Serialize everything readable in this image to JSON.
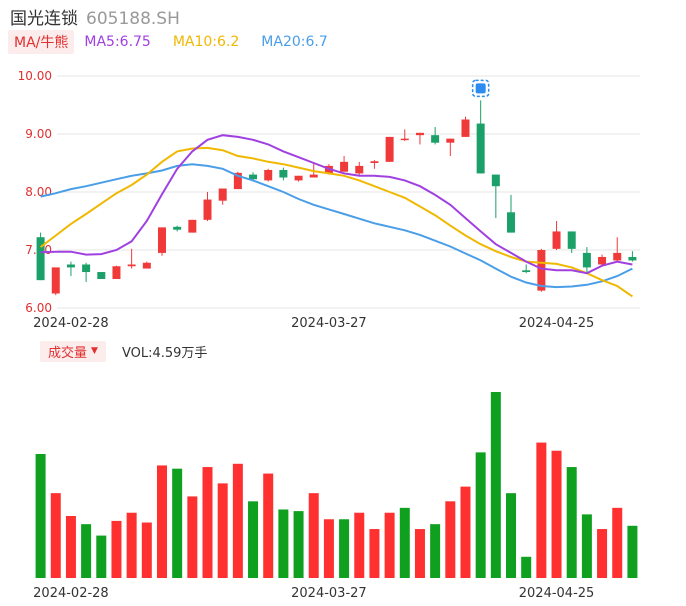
{
  "header": {
    "name": "国光连锁",
    "code": "605188.SH"
  },
  "ma_legend": {
    "tag": "MA/牛熊",
    "items": [
      {
        "label": "MA5:6.75",
        "color": "#a040e0"
      },
      {
        "label": "MA10:6.2",
        "color": "#f0b800"
      },
      {
        "label": "MA20:6.7",
        "color": "#4a9ee8"
      }
    ]
  },
  "volume_legend": {
    "tag": "成交量",
    "caret": "▼",
    "value": "VOL:4.59万手"
  },
  "colors": {
    "up": "#f03a3a",
    "down": "#1aa068",
    "vol_up": "#ff3030",
    "vol_down": "#10a020",
    "grid": "#e6e6e6"
  },
  "chart_data": [
    {
      "type": "candlestick",
      "y_ticks": [
        "10.00",
        "9.00",
        "8.00",
        "7.00",
        "6.00"
      ],
      "ylim": [
        6.0,
        10.0
      ],
      "x_labels": [
        "2024-02-28",
        "2024-03-27",
        "2024-04-25"
      ],
      "candles": [
        {
          "o": 7.22,
          "h": 7.3,
          "l": 6.48,
          "c": 6.48
        },
        {
          "o": 6.25,
          "h": 6.7,
          "l": 6.22,
          "c": 6.7
        },
        {
          "o": 6.75,
          "h": 6.8,
          "l": 6.55,
          "c": 6.7
        },
        {
          "o": 6.75,
          "h": 6.78,
          "l": 6.45,
          "c": 6.62
        },
        {
          "o": 6.62,
          "h": 6.62,
          "l": 6.5,
          "c": 6.5
        },
        {
          "o": 6.5,
          "h": 6.73,
          "l": 6.5,
          "c": 6.72
        },
        {
          "o": 6.72,
          "h": 7.02,
          "l": 6.68,
          "c": 6.75
        },
        {
          "o": 6.68,
          "h": 6.8,
          "l": 6.68,
          "c": 6.78
        },
        {
          "o": 6.95,
          "h": 7.39,
          "l": 6.9,
          "c": 7.39
        },
        {
          "o": 7.4,
          "h": 7.42,
          "l": 7.32,
          "c": 7.35
        },
        {
          "o": 7.3,
          "h": 7.52,
          "l": 7.3,
          "c": 7.52
        },
        {
          "o": 7.52,
          "h": 8.0,
          "l": 7.5,
          "c": 7.87
        },
        {
          "o": 7.85,
          "h": 8.06,
          "l": 7.78,
          "c": 8.06
        },
        {
          "o": 8.05,
          "h": 8.35,
          "l": 8.05,
          "c": 8.33
        },
        {
          "o": 8.3,
          "h": 8.34,
          "l": 8.18,
          "c": 8.22
        },
        {
          "o": 8.2,
          "h": 8.4,
          "l": 8.18,
          "c": 8.38
        },
        {
          "o": 8.38,
          "h": 8.42,
          "l": 8.2,
          "c": 8.25
        },
        {
          "o": 8.2,
          "h": 8.28,
          "l": 8.18,
          "c": 8.28
        },
        {
          "o": 8.25,
          "h": 8.5,
          "l": 8.25,
          "c": 8.3
        },
        {
          "o": 8.32,
          "h": 8.48,
          "l": 8.3,
          "c": 8.45
        },
        {
          "o": 8.35,
          "h": 8.62,
          "l": 8.35,
          "c": 8.52
        },
        {
          "o": 8.32,
          "h": 8.52,
          "l": 8.28,
          "c": 8.45
        },
        {
          "o": 8.5,
          "h": 8.55,
          "l": 8.4,
          "c": 8.53
        },
        {
          "o": 8.52,
          "h": 8.95,
          "l": 8.52,
          "c": 8.95
        },
        {
          "o": 8.9,
          "h": 9.08,
          "l": 8.88,
          "c": 8.92
        },
        {
          "o": 8.98,
          "h": 9.02,
          "l": 8.82,
          "c": 9.02
        },
        {
          "o": 8.98,
          "h": 9.12,
          "l": 8.82,
          "c": 8.85
        },
        {
          "o": 8.85,
          "h": 8.92,
          "l": 8.62,
          "c": 8.92
        },
        {
          "o": 8.95,
          "h": 9.3,
          "l": 8.95,
          "c": 9.25
        },
        {
          "o": 9.18,
          "h": 9.58,
          "l": 8.32,
          "c": 8.32
        },
        {
          "o": 8.3,
          "h": 8.3,
          "l": 7.55,
          "c": 8.1
        },
        {
          "o": 7.65,
          "h": 7.95,
          "l": 7.3,
          "c": 7.3
        },
        {
          "o": 6.65,
          "h": 6.75,
          "l": 6.6,
          "c": 6.62
        },
        {
          "o": 6.3,
          "h": 7.02,
          "l": 6.28,
          "c": 7.0
        },
        {
          "o": 7.02,
          "h": 7.5,
          "l": 7.0,
          "c": 7.32
        },
        {
          "o": 7.32,
          "h": 7.32,
          "l": 6.95,
          "c": 7.02
        },
        {
          "o": 6.95,
          "h": 7.05,
          "l": 6.6,
          "c": 6.7
        },
        {
          "o": 6.75,
          "h": 6.92,
          "l": 6.72,
          "c": 6.88
        },
        {
          "o": 6.82,
          "h": 7.22,
          "l": 6.8,
          "c": 6.95
        },
        {
          "o": 6.88,
          "h": 6.98,
          "l": 6.8,
          "c": 6.82
        }
      ],
      "ma5": [
        6.96,
        6.97,
        6.97,
        6.92,
        6.93,
        7.0,
        7.15,
        7.5,
        7.96,
        8.4,
        8.7,
        8.9,
        8.98,
        8.95,
        8.9,
        8.82,
        8.7,
        8.6,
        8.5,
        8.4,
        8.32,
        8.28,
        8.28,
        8.26,
        8.2,
        8.1,
        7.95,
        7.78,
        7.55,
        7.32,
        7.1,
        6.95,
        6.8,
        6.68,
        6.65,
        6.65,
        6.6,
        6.73,
        6.8,
        6.75
      ],
      "ma10": [
        7.05,
        7.25,
        7.45,
        7.62,
        7.8,
        7.98,
        8.12,
        8.3,
        8.52,
        8.7,
        8.75,
        8.76,
        8.72,
        8.62,
        8.58,
        8.52,
        8.48,
        8.42,
        8.36,
        8.32,
        8.28,
        8.2,
        8.1,
        8.0,
        7.9,
        7.75,
        7.6,
        7.42,
        7.25,
        7.1,
        6.98,
        6.88,
        6.8,
        6.78,
        6.76,
        6.7,
        6.6,
        6.48,
        6.38,
        6.2
      ],
      "ma20": [
        7.92,
        7.98,
        8.05,
        8.1,
        8.16,
        8.22,
        8.28,
        8.32,
        8.37,
        8.45,
        8.48,
        8.45,
        8.4,
        8.28,
        8.2,
        8.1,
        8.0,
        7.88,
        7.78,
        7.7,
        7.62,
        7.54,
        7.46,
        7.4,
        7.34,
        7.26,
        7.16,
        7.06,
        6.94,
        6.82,
        6.68,
        6.54,
        6.44,
        6.38,
        6.36,
        6.37,
        6.4,
        6.46,
        6.55,
        6.68
      ],
      "marker_icon": "flag-icon"
    },
    {
      "type": "bar",
      "title": "成交量",
      "volumes": [
        0.76,
        0.52,
        0.38,
        0.33,
        0.26,
        0.35,
        0.4,
        0.34,
        0.69,
        0.67,
        0.5,
        0.68,
        0.58,
        0.7,
        0.47,
        0.64,
        0.42,
        0.41,
        0.52,
        0.36,
        0.36,
        0.4,
        0.3,
        0.4,
        0.43,
        0.3,
        0.33,
        0.47,
        0.56,
        0.77,
        1.14,
        0.52,
        0.13,
        0.83,
        0.78,
        0.68,
        0.39,
        0.3,
        0.43,
        0.32
      ],
      "directions": [
        "down",
        "up",
        "up",
        "down",
        "down",
        "up",
        "up",
        "up",
        "up",
        "down",
        "up",
        "up",
        "up",
        "up",
        "down",
        "up",
        "down",
        "down",
        "up",
        "up",
        "down",
        "up",
        "up",
        "up",
        "down",
        "up",
        "down",
        "up",
        "up",
        "down",
        "down",
        "down",
        "down",
        "up",
        "up",
        "down",
        "down",
        "up",
        "up",
        "down"
      ]
    }
  ]
}
